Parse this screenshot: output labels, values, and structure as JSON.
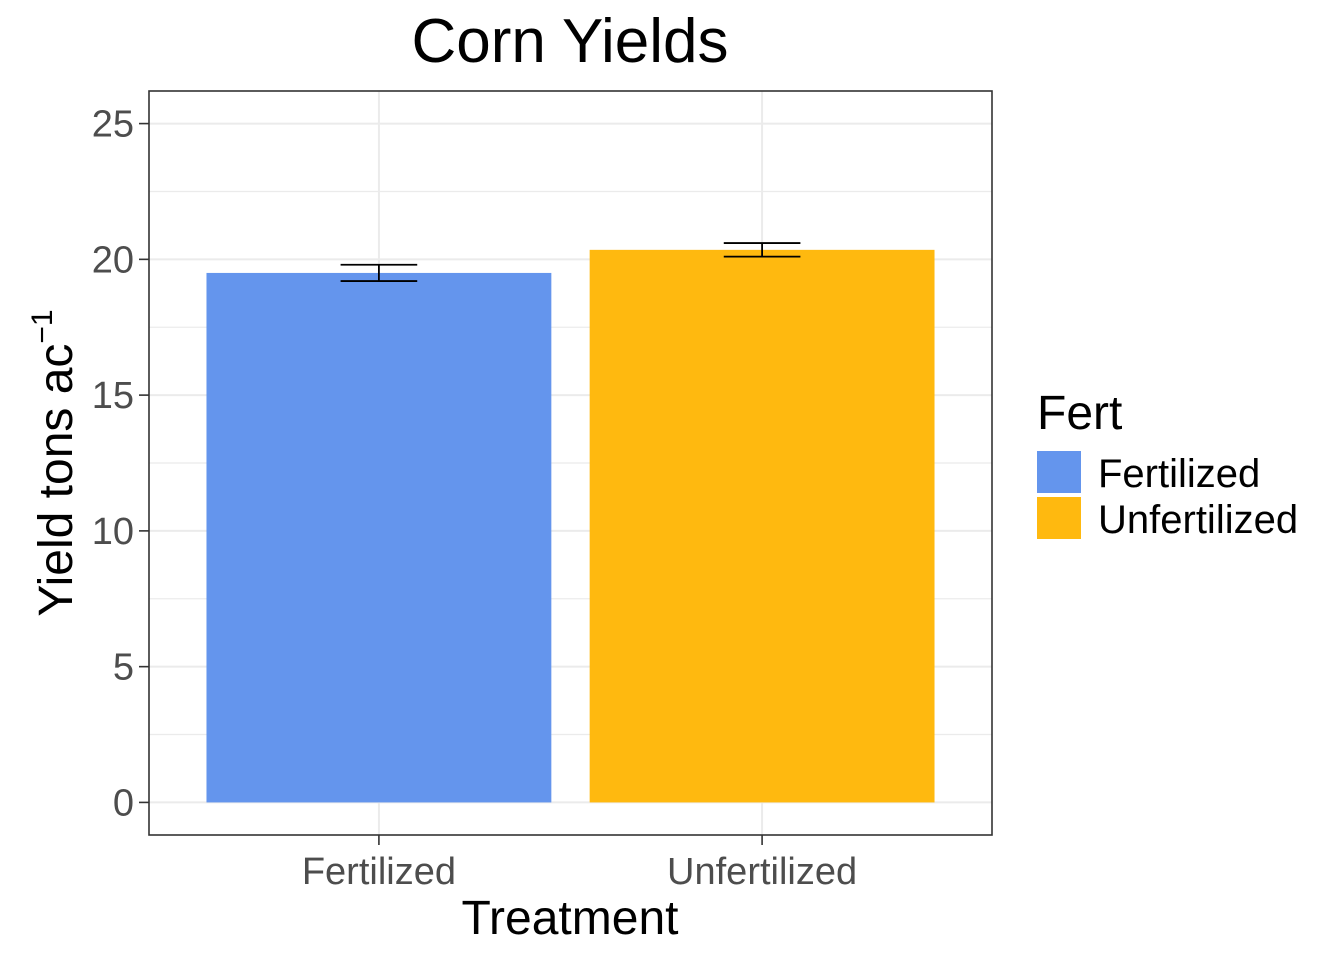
{
  "chart_data": {
    "type": "bar",
    "title": "Corn Yields",
    "xlabel": "Treatment",
    "ylabel_main": "Yield tons  ac",
    "ylabel_superscript": "−1",
    "categories": [
      "Fertilized",
      "Unfertilized"
    ],
    "values": [
      19.5,
      20.35
    ],
    "error_bars": [
      {
        "low": 19.2,
        "high": 19.8
      },
      {
        "low": 20.1,
        "high": 20.6
      }
    ],
    "colors": [
      "#6495ED",
      "#FFB90F"
    ],
    "ylim": [
      -1.2,
      26.2
    ],
    "yticks": [
      0,
      5,
      10,
      15,
      20,
      25
    ],
    "ytick_labels": [
      "0",
      "5",
      "10",
      "15",
      "20",
      "25"
    ],
    "grid": true,
    "legend": {
      "title": "Fert",
      "position": "right",
      "entries": [
        {
          "label": "Fertilized",
          "color": "#6495ED"
        },
        {
          "label": "Unfertilized",
          "color": "#FFB90F"
        }
      ]
    }
  }
}
